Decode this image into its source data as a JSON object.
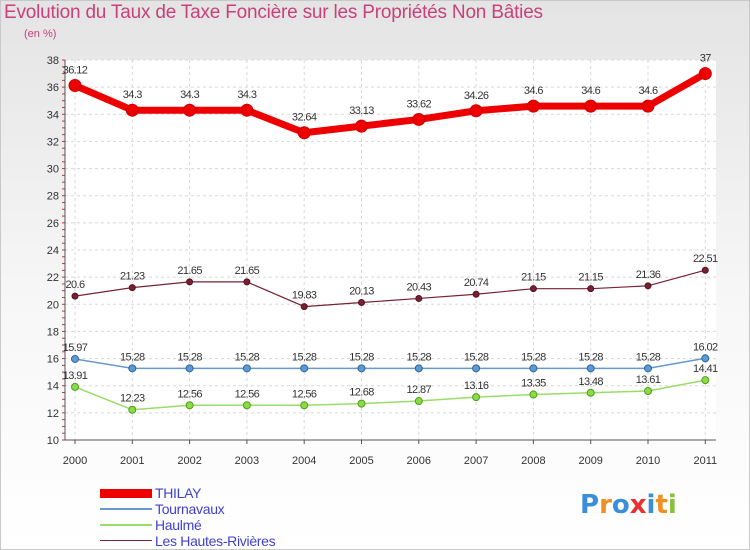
{
  "chart_data": {
    "type": "line",
    "title": "Evolution du Taux de Taxe Foncière sur les Propriétés Non Bâties",
    "subtitle": "(en %)",
    "x": [
      "2000",
      "2001",
      "2002",
      "2003",
      "2004",
      "2005",
      "2006",
      "2007",
      "2008",
      "2009",
      "2010",
      "2011"
    ],
    "ylim": [
      10,
      38
    ],
    "yticks": [
      "10",
      "12",
      "14",
      "16",
      "18",
      "20",
      "22",
      "24",
      "26",
      "28",
      "30",
      "32",
      "34",
      "36",
      "38"
    ],
    "grid": true,
    "legend_position": "bottom-left",
    "series": [
      {
        "name": "THILAY",
        "color": "#ee0000",
        "values": [
          36.12,
          34.3,
          34.3,
          34.3,
          32.64,
          33.13,
          33.62,
          34.26,
          34.6,
          34.6,
          34.6,
          37
        ],
        "labels": [
          "36.12",
          "34.3",
          "34.3",
          "34.3",
          "32.64",
          "33.13",
          "33.62",
          "34.26",
          "34.6",
          "34.6",
          "34.6",
          "37"
        ]
      },
      {
        "name": "Tournavaux",
        "color": "#6699cc",
        "values": [
          15.97,
          15.28,
          15.28,
          15.28,
          15.28,
          15.28,
          15.28,
          15.28,
          15.28,
          15.28,
          15.28,
          16.02
        ],
        "labels": [
          "15.97",
          "15.28",
          "15.28",
          "15.28",
          "15.28",
          "15.28",
          "15.28",
          "15.28",
          "15.28",
          "15.28",
          "15.28",
          "16.02"
        ]
      },
      {
        "name": "Haulmé",
        "color": "#99dd66",
        "values": [
          13.91,
          12.23,
          12.56,
          12.56,
          12.56,
          12.68,
          12.87,
          13.16,
          13.35,
          13.48,
          13.61,
          14.41
        ],
        "labels": [
          "13.91",
          "12.23",
          "12.56",
          "12.56",
          "12.56",
          "12.68",
          "12.87",
          "13.16",
          "13.35",
          "13.48",
          "13.61",
          "14.41"
        ]
      },
      {
        "name": "Les Hautes-Rivières",
        "color": "#772233",
        "values": [
          20.6,
          21.23,
          21.65,
          21.65,
          19.83,
          20.13,
          20.43,
          20.74,
          21.15,
          21.15,
          21.36,
          22.51
        ],
        "labels": [
          "20.6",
          "21.23",
          "21.65",
          "21.65",
          "19.83",
          "20.13",
          "20.43",
          "20.74",
          "21.15",
          "21.15",
          "21.36",
          "22.51"
        ]
      }
    ]
  },
  "legend": [
    {
      "label": "THILAY",
      "color": "#ee0000"
    },
    {
      "label": "Tournavaux",
      "color": "#6699cc"
    },
    {
      "label": "Haulmé",
      "color": "#99dd66"
    },
    {
      "label": "Les Hautes-Rivières",
      "color": "#772233"
    }
  ],
  "logo": {
    "letters": [
      "P",
      "r",
      "o",
      "x",
      "i",
      "t",
      "i"
    ],
    "colors": [
      "#3a8fd8",
      "#f09020",
      "#3a8fd8",
      "#e83030",
      "#3a8fd8",
      "#f09020",
      "#88c040"
    ]
  }
}
